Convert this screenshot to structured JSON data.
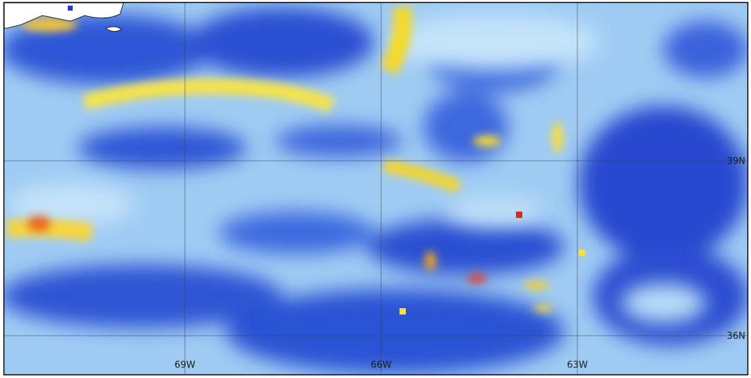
{
  "map": {
    "lat_labels": [
      "39N",
      "36N"
    ],
    "lon_labels": [
      "69W",
      "66W",
      "63W"
    ]
  }
}
